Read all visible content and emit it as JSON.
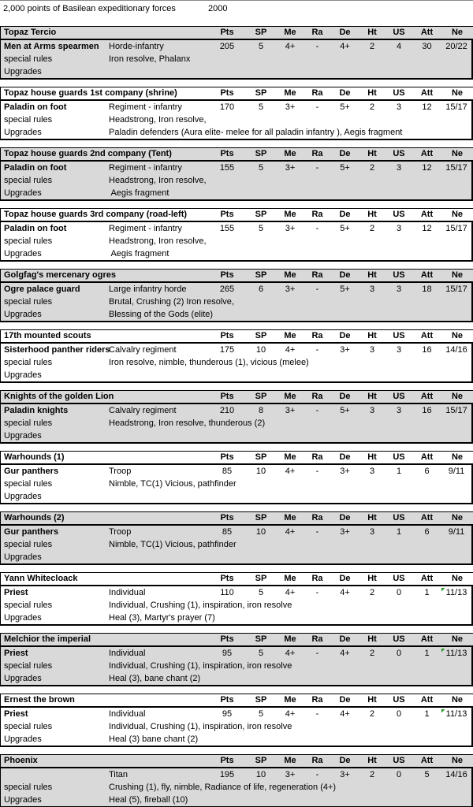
{
  "title": {
    "text": "2,000 points of Basilean expeditionary forces",
    "points_value": "2000"
  },
  "table": {
    "stat_columns": [
      "Pts",
      "SP",
      "Me",
      "Ra",
      "De",
      "Ht",
      "US",
      "Att",
      "Ne"
    ],
    "row_labels": {
      "special_rules": "special rules",
      "upgrades": "Upgrades"
    }
  },
  "colors": {
    "shaded_block_bg": "#d9d9d9",
    "plain_block_bg": "#ffffff",
    "border": "#000000",
    "flag_green": "#239b23"
  },
  "blocks": [
    {
      "title": "Topaz Tercio",
      "shaded": true,
      "unit_name": "Men at Arms spearmen",
      "unit_type": "Horde-infantry",
      "stats": {
        "pts": "205",
        "sp": "5",
        "me": "4+",
        "ra": "-",
        "de": "4+",
        "ht": "2",
        "us": "4",
        "att": "30",
        "ne": "20/22"
      },
      "ne_flag": false,
      "special_rules": "Iron resolve, Phalanx",
      "upgrades": ""
    },
    {
      "title": "Topaz house guards 1st company (shrine)",
      "shaded": false,
      "unit_name": "Paladin on foot",
      "unit_type": "Regiment - infantry",
      "stats": {
        "pts": "170",
        "sp": "5",
        "me": "3+",
        "ra": "-",
        "de": "5+",
        "ht": "2",
        "us": "3",
        "att": "12",
        "ne": "15/17"
      },
      "ne_flag": false,
      "special_rules": "Headstrong, Iron resolve,",
      "upgrades": "Paladin defenders (Aura elite- melee for all paladin infantry ), Aegis fragment"
    },
    {
      "title": "Topaz house guards 2nd company (Tent)",
      "shaded": true,
      "unit_name": "Paladin on foot",
      "unit_type": "Regiment - infantry",
      "stats": {
        "pts": "155",
        "sp": "5",
        "me": "3+",
        "ra": "-",
        "de": "5+",
        "ht": "2",
        "us": "3",
        "att": "12",
        "ne": "15/17"
      },
      "ne_flag": false,
      "special_rules": "Headstrong, Iron resolve,",
      "upgrades": " Aegis fragment"
    },
    {
      "title": "Topaz house guards 3rd company (road-left)",
      "shaded": false,
      "unit_name": "Paladin on foot",
      "unit_type": "Regiment - infantry",
      "stats": {
        "pts": "155",
        "sp": "5",
        "me": "3+",
        "ra": "-",
        "de": "5+",
        "ht": "2",
        "us": "3",
        "att": "12",
        "ne": "15/17"
      },
      "ne_flag": false,
      "special_rules": "Headstrong, Iron resolve,",
      "upgrades": " Aegis fragment"
    },
    {
      "title": "Golgfag's mercenary ogres",
      "shaded": true,
      "unit_name": "Ogre palace guard",
      "unit_type": "Large infantry horde",
      "stats": {
        "pts": "265",
        "sp": "6",
        "me": "3+",
        "ra": "-",
        "de": "5+",
        "ht": "3",
        "us": "3",
        "att": "18",
        "ne": "15/17"
      },
      "ne_flag": false,
      "special_rules": "Brutal, Crushing (2) Iron resolve,",
      "upgrades": "Blessing of the Gods (elite)"
    },
    {
      "title": "17th mounted scouts",
      "shaded": false,
      "unit_name": "Sisterhood panther riders",
      "unit_type": "Calvalry regiment",
      "stats": {
        "pts": "175",
        "sp": "10",
        "me": "4+",
        "ra": "-",
        "de": "3+",
        "ht": "3",
        "us": "3",
        "att": "16",
        "ne": "14/16"
      },
      "ne_flag": false,
      "special_rules": "Iron resolve, nimble, thunderous (1), vicious (melee)",
      "upgrades": ""
    },
    {
      "title": "Knights of the golden Lion",
      "shaded": true,
      "unit_name": "Paladin knights",
      "unit_type": "Calvalry regiment",
      "stats": {
        "pts": "210",
        "sp": "8",
        "me": "3+",
        "ra": "-",
        "de": "5+",
        "ht": "3",
        "us": "3",
        "att": "16",
        "ne": "15/17"
      },
      "ne_flag": false,
      "special_rules": "Headstrong, Iron resolve, thunderous (2)",
      "upgrades": ""
    },
    {
      "title": "Warhounds (1)",
      "shaded": false,
      "unit_name": "Gur panthers",
      "unit_type": "Troop",
      "stats": {
        "pts": "85",
        "sp": "10",
        "me": "4+",
        "ra": "-",
        "de": "3+",
        "ht": "3",
        "us": "1",
        "att": "6",
        "ne": "9/11"
      },
      "ne_flag": false,
      "special_rules": "Nimble, TC(1) Vicious, pathfinder",
      "upgrades": ""
    },
    {
      "title": "Warhounds (2)",
      "shaded": true,
      "unit_name": "Gur panthers",
      "unit_type": "Troop",
      "stats": {
        "pts": "85",
        "sp": "10",
        "me": "4+",
        "ra": "-",
        "de": "3+",
        "ht": "3",
        "us": "1",
        "att": "6",
        "ne": "9/11"
      },
      "ne_flag": false,
      "special_rules": "Nimble, TC(1) Vicious, pathfinder",
      "upgrades": ""
    },
    {
      "title": "Yann Whitecloack",
      "shaded": false,
      "unit_name": "Priest",
      "unit_type": "Individual",
      "stats": {
        "pts": "110",
        "sp": "5",
        "me": "4+",
        "ra": "-",
        "de": "4+",
        "ht": "2",
        "us": "0",
        "att": "1",
        "ne": "11/13"
      },
      "ne_flag": true,
      "special_rules": "Individual, Crushing (1), inspiration, iron resolve",
      "upgrades": "Heal (3), Martyr's prayer (7)"
    },
    {
      "title": "Melchior the imperial",
      "shaded": true,
      "unit_name": "Priest",
      "unit_type": "Individual",
      "stats": {
        "pts": "95",
        "sp": "5",
        "me": "4+",
        "ra": "-",
        "de": "4+",
        "ht": "2",
        "us": "0",
        "att": "1",
        "ne": "11/13"
      },
      "ne_flag": true,
      "special_rules": "Individual, Crushing (1), inspiration, iron resolve",
      "upgrades": "Heal (3), bane chant (2)"
    },
    {
      "title": "Ernest the brown",
      "shaded": false,
      "unit_name": "Priest",
      "unit_type": "Individual",
      "stats": {
        "pts": "95",
        "sp": "5",
        "me": "4+",
        "ra": "-",
        "de": "4+",
        "ht": "2",
        "us": "0",
        "att": "1",
        "ne": "11/13"
      },
      "ne_flag": true,
      "special_rules": "Individual, Crushing (1), inspiration, iron resolve",
      "upgrades": "Heal (3) bane chant (2)"
    },
    {
      "title": "Phoenix",
      "shaded": true,
      "unit_name": "",
      "unit_type": "Titan",
      "stats": {
        "pts": "195",
        "sp": "10",
        "me": "3+",
        "ra": "-",
        "de": "3+",
        "ht": "2",
        "us": "0",
        "att": "5",
        "ne": "14/16"
      },
      "ne_flag": false,
      "special_rules": "Crushing (1), fly, nimble, Radiance of life, regeneration (4+)",
      "upgrades": "Heal (5), fireball (10)"
    }
  ]
}
